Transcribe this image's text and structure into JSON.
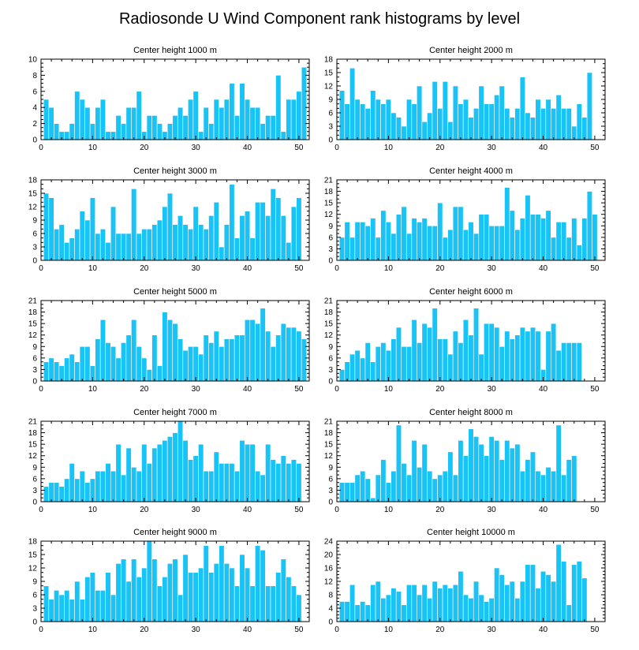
{
  "figure_title": "Radiosonde U Wind Component rank histograms by level",
  "colors": {
    "bar": "#19c3f5",
    "axis": "#000000",
    "background": "#ffffff"
  },
  "chart_data": [
    {
      "type": "bar",
      "title": "Center height 1000 m",
      "xlim": [
        0,
        52
      ],
      "ylim": [
        0,
        10
      ],
      "xticks": [
        0,
        10,
        20,
        30,
        40,
        50
      ],
      "yticks": [
        0,
        2,
        4,
        6,
        8,
        10
      ],
      "values": [
        5,
        4,
        2,
        1,
        1,
        2,
        6,
        5,
        4,
        2,
        4,
        5,
        1,
        1,
        3,
        2,
        4,
        4,
        6,
        1,
        3,
        3,
        2,
        1,
        2,
        3,
        4,
        3,
        5,
        6,
        1,
        4,
        2,
        5,
        4,
        5,
        7,
        3,
        7,
        5,
        4,
        4,
        2,
        3,
        3,
        8,
        1,
        5,
        5,
        6,
        9
      ]
    },
    {
      "type": "bar",
      "title": "Center height 2000 m",
      "xlim": [
        0,
        52
      ],
      "ylim": [
        0,
        18
      ],
      "xticks": [
        0,
        10,
        20,
        30,
        40,
        50
      ],
      "yticks": [
        0,
        3,
        6,
        9,
        12,
        15,
        18
      ],
      "values": [
        11,
        8,
        16,
        9,
        8,
        7,
        11,
        9,
        8,
        9,
        6,
        5,
        3,
        9,
        8,
        12,
        4,
        6,
        13,
        7,
        13,
        4,
        12,
        8,
        9,
        5,
        7,
        12,
        8,
        8,
        10,
        12,
        7,
        5,
        7,
        14,
        6,
        5,
        9,
        7,
        9,
        7,
        10,
        7,
        7,
        3,
        8,
        5,
        15
      ]
    },
    {
      "type": "bar",
      "title": "Center height 3000 m",
      "xlim": [
        0,
        52
      ],
      "ylim": [
        0,
        18
      ],
      "xticks": [
        0,
        10,
        20,
        30,
        40,
        50
      ],
      "yticks": [
        0,
        3,
        6,
        9,
        12,
        15,
        18
      ],
      "values": [
        15,
        14,
        7,
        8,
        4,
        5,
        7,
        11,
        9,
        14,
        6,
        7,
        4,
        12,
        6,
        6,
        6,
        16,
        6,
        7,
        7,
        8,
        9,
        12,
        15,
        8,
        10,
        8,
        7,
        12,
        8,
        7,
        10,
        13,
        3,
        8,
        17,
        5,
        10,
        11,
        5,
        13,
        13,
        10,
        16,
        14,
        10,
        4,
        12,
        14
      ]
    },
    {
      "type": "bar",
      "title": "Center height 4000 m",
      "xlim": [
        0,
        52
      ],
      "ylim": [
        0,
        21
      ],
      "xticks": [
        0,
        10,
        20,
        30,
        40,
        50
      ],
      "yticks": [
        0,
        3,
        6,
        9,
        12,
        15,
        18,
        21
      ],
      "values": [
        6,
        10,
        6,
        10,
        10,
        9,
        11,
        6,
        13,
        10,
        7,
        12,
        14,
        7,
        11,
        10,
        11,
        9,
        9,
        15,
        6,
        8,
        14,
        14,
        8,
        10,
        7,
        12,
        12,
        9,
        9,
        9,
        19,
        13,
        8,
        11,
        17,
        12,
        12,
        11,
        13,
        6,
        10,
        10,
        6,
        11,
        4,
        11,
        18,
        12
      ]
    },
    {
      "type": "bar",
      "title": "Center height 5000 m",
      "xlim": [
        0,
        52
      ],
      "ylim": [
        0,
        21
      ],
      "xticks": [
        0,
        10,
        20,
        30,
        40,
        50
      ],
      "yticks": [
        0,
        3,
        6,
        9,
        12,
        15,
        18,
        21
      ],
      "values": [
        5,
        6,
        5,
        4,
        6,
        7,
        5,
        9,
        9,
        4,
        11,
        16,
        10,
        9,
        6,
        10,
        12,
        16,
        9,
        6,
        3,
        12,
        4,
        18,
        16,
        15,
        11,
        8,
        9,
        9,
        7,
        12,
        10,
        13,
        9,
        11,
        11,
        12,
        12,
        16,
        16,
        15,
        19,
        13,
        9,
        12,
        15,
        14,
        14,
        13,
        11
      ]
    },
    {
      "type": "bar",
      "title": "Center height 6000 m",
      "xlim": [
        0,
        52
      ],
      "ylim": [
        0,
        21
      ],
      "xticks": [
        0,
        10,
        20,
        30,
        40,
        50
      ],
      "yticks": [
        0,
        3,
        6,
        9,
        12,
        15,
        18,
        21
      ],
      "values": [
        3,
        5,
        7,
        8,
        6,
        10,
        5,
        9,
        10,
        8,
        11,
        14,
        9,
        9,
        16,
        10,
        15,
        14,
        19,
        11,
        11,
        7,
        13,
        10,
        16,
        12,
        19,
        7,
        15,
        15,
        14,
        9,
        13,
        11,
        12,
        14,
        13,
        14,
        13,
        3,
        13,
        15,
        8,
        10,
        10,
        10,
        10
      ]
    },
    {
      "type": "bar",
      "title": "Center height 7000 m",
      "xlim": [
        0,
        52
      ],
      "ylim": [
        0,
        21
      ],
      "xticks": [
        0,
        10,
        20,
        30,
        40,
        50
      ],
      "yticks": [
        0,
        3,
        6,
        9,
        12,
        15,
        18,
        21
      ],
      "values": [
        4,
        5,
        5,
        4,
        6,
        10,
        6,
        8,
        5,
        6,
        8,
        8,
        10,
        8,
        15,
        7,
        14,
        9,
        8,
        15,
        10,
        14,
        15,
        16,
        17,
        18,
        21,
        16,
        11,
        12,
        15,
        8,
        8,
        13,
        10,
        10,
        10,
        8,
        16,
        15,
        15,
        8,
        7,
        15,
        11,
        10,
        12,
        10,
        11,
        10
      ]
    },
    {
      "type": "bar",
      "title": "Center height 8000 m",
      "xlim": [
        0,
        52
      ],
      "ylim": [
        0,
        21
      ],
      "xticks": [
        0,
        10,
        20,
        30,
        40,
        50
      ],
      "yticks": [
        0,
        3,
        6,
        9,
        12,
        15,
        18,
        21
      ],
      "values": [
        5,
        5,
        5,
        7,
        8,
        6,
        1,
        7,
        11,
        5,
        8,
        20,
        10,
        7,
        16,
        9,
        15,
        8,
        6,
        7,
        8,
        13,
        7,
        16,
        12,
        19,
        17,
        15,
        12,
        17,
        16,
        11,
        16,
        14,
        15,
        8,
        11,
        13,
        8,
        7,
        9,
        8,
        20,
        7,
        11,
        12
      ]
    },
    {
      "type": "bar",
      "title": "Center height 9000 m",
      "xlim": [
        0,
        52
      ],
      "ylim": [
        0,
        18
      ],
      "xticks": [
        0,
        10,
        20,
        30,
        40,
        50
      ],
      "yticks": [
        0,
        3,
        6,
        9,
        12,
        15,
        18
      ],
      "values": [
        8,
        5,
        7,
        6,
        7,
        5,
        9,
        5,
        10,
        11,
        7,
        7,
        11,
        6,
        13,
        14,
        9,
        14,
        10,
        12,
        18,
        14,
        8,
        10,
        13,
        14,
        6,
        15,
        11,
        11,
        12,
        17,
        11,
        13,
        17,
        13,
        12,
        8,
        15,
        12,
        8,
        17,
        16,
        8,
        8,
        11,
        14,
        10,
        8,
        6
      ]
    },
    {
      "type": "bar",
      "title": "Center height 10000 m",
      "xlim": [
        0,
        52
      ],
      "ylim": [
        0,
        24
      ],
      "xticks": [
        0,
        10,
        20,
        30,
        40,
        50
      ],
      "yticks": [
        0,
        4,
        8,
        12,
        16,
        20,
        24
      ],
      "values": [
        6,
        6,
        11,
        5,
        6,
        5,
        11,
        12,
        7,
        8,
        10,
        9,
        5,
        11,
        11,
        8,
        11,
        7,
        12,
        10,
        11,
        10,
        11,
        15,
        8,
        7,
        12,
        8,
        6,
        7,
        16,
        14,
        11,
        12,
        7,
        12,
        17,
        17,
        10,
        15,
        14,
        12,
        23,
        18,
        5,
        17,
        18,
        13
      ]
    }
  ]
}
